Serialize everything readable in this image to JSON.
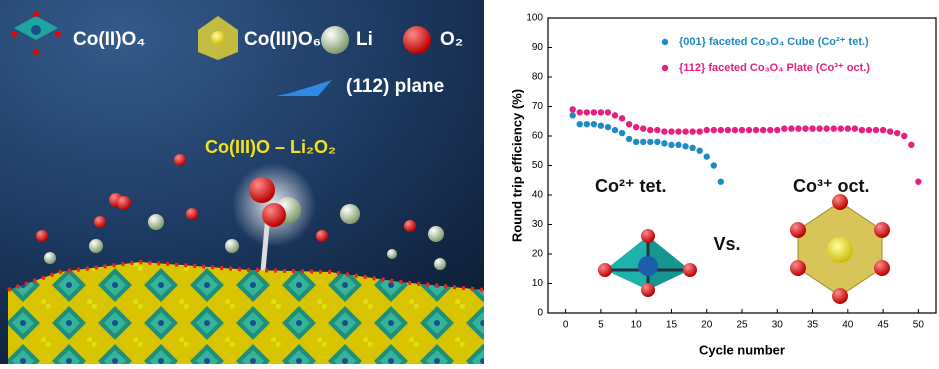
{
  "illustration": {
    "legend": [
      "Co(II)O₄",
      "Co(III)O₆",
      "Li",
      "O₂"
    ],
    "plane_label": "(112) plane",
    "site_label": "Co(III)O – Li₂O₂"
  },
  "chart_data": {
    "type": "scatter",
    "x_label": "Cycle number",
    "y_label": "Round trip efficiency (%)",
    "xlim": [
      -2.5,
      52.5
    ],
    "xticks": [
      0,
      5,
      10,
      15,
      20,
      25,
      30,
      35,
      40,
      45,
      50
    ],
    "ylim": [
      0,
      100
    ],
    "yticks": [
      0,
      10,
      20,
      30,
      40,
      50,
      60,
      70,
      80,
      90,
      100
    ],
    "grid": false,
    "legend": "upper right",
    "series": [
      {
        "name": "{001} faceted Co₃O₄ Cube (Co²⁺ tet.)",
        "color": "#1f8ac6",
        "x": [
          1,
          2,
          3,
          4,
          5,
          6,
          7,
          8,
          9,
          10,
          11,
          12,
          13,
          14,
          15,
          16,
          17,
          18,
          19,
          20,
          21,
          22
        ],
        "values": [
          67,
          64,
          64,
          64,
          63.5,
          63,
          62,
          61,
          59,
          58,
          58,
          58,
          58,
          57.5,
          57,
          57,
          56.5,
          56,
          55,
          53,
          50,
          44.5
        ]
      },
      {
        "name": "{112} faceted Co₃O₄ Plate (Co³⁺ oct.)",
        "color": "#e6207c",
        "x": [
          1,
          2,
          3,
          4,
          5,
          6,
          7,
          8,
          9,
          10,
          11,
          12,
          13,
          14,
          15,
          16,
          17,
          18,
          19,
          20,
          21,
          22,
          23,
          24,
          25,
          26,
          27,
          28,
          29,
          30,
          31,
          32,
          33,
          34,
          35,
          36,
          37,
          38,
          39,
          40,
          41,
          42,
          43,
          44,
          45,
          46,
          47,
          48,
          49,
          50
        ],
        "values": [
          69,
          68,
          68,
          68,
          68,
          68,
          67,
          66,
          64,
          63,
          62.5,
          62,
          62,
          61.5,
          61.5,
          61.5,
          61.5,
          61.5,
          61.5,
          62,
          62,
          62,
          62,
          62,
          62,
          62,
          62,
          62,
          62,
          62,
          62.5,
          62.5,
          62.5,
          62.5,
          62.5,
          62.5,
          62.5,
          62.5,
          62.5,
          62.5,
          62.5,
          62,
          62,
          62,
          62,
          61.5,
          61,
          60,
          57,
          44.5
        ]
      }
    ],
    "annotations": [
      "Co²⁺ tet.",
      "Vs.",
      "Co³⁺ oct."
    ]
  }
}
